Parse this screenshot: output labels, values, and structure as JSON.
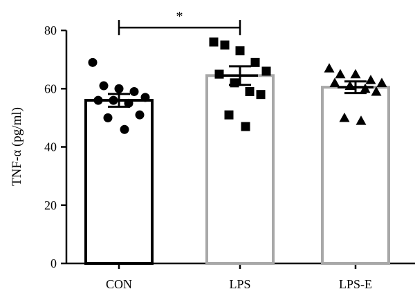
{
  "chart_data": {
    "type": "bar",
    "categories": [
      "CON",
      "LPS",
      "LPS-E"
    ],
    "ylabel": "TNF-α (pg/ml)",
    "ylim": [
      0,
      80
    ],
    "yticks": [
      0,
      20,
      40,
      60,
      80
    ],
    "grid": false,
    "bars": [
      {
        "category": "CON",
        "mean": 56,
        "sem": 2.2,
        "color": "#000000",
        "marker": "circle",
        "points": [
          69,
          61,
          60,
          59,
          57,
          56,
          56,
          55,
          51,
          50,
          46
        ]
      },
      {
        "category": "LPS",
        "mean": 64.5,
        "sem": 3.2,
        "color": "#a8a8a8",
        "marker": "square",
        "points": [
          76,
          75,
          73,
          69,
          66,
          65,
          62,
          59,
          58,
          51,
          47
        ]
      },
      {
        "category": "LPS-E",
        "mean": 60.5,
        "sem": 2.0,
        "color": "#a8a8a8",
        "marker": "triangle",
        "points": [
          67,
          65,
          65,
          63,
          62,
          62,
          61,
          60,
          59,
          50,
          49
        ]
      }
    ],
    "significance": [
      {
        "from": "CON",
        "to": "LPS",
        "label": "*"
      }
    ]
  }
}
